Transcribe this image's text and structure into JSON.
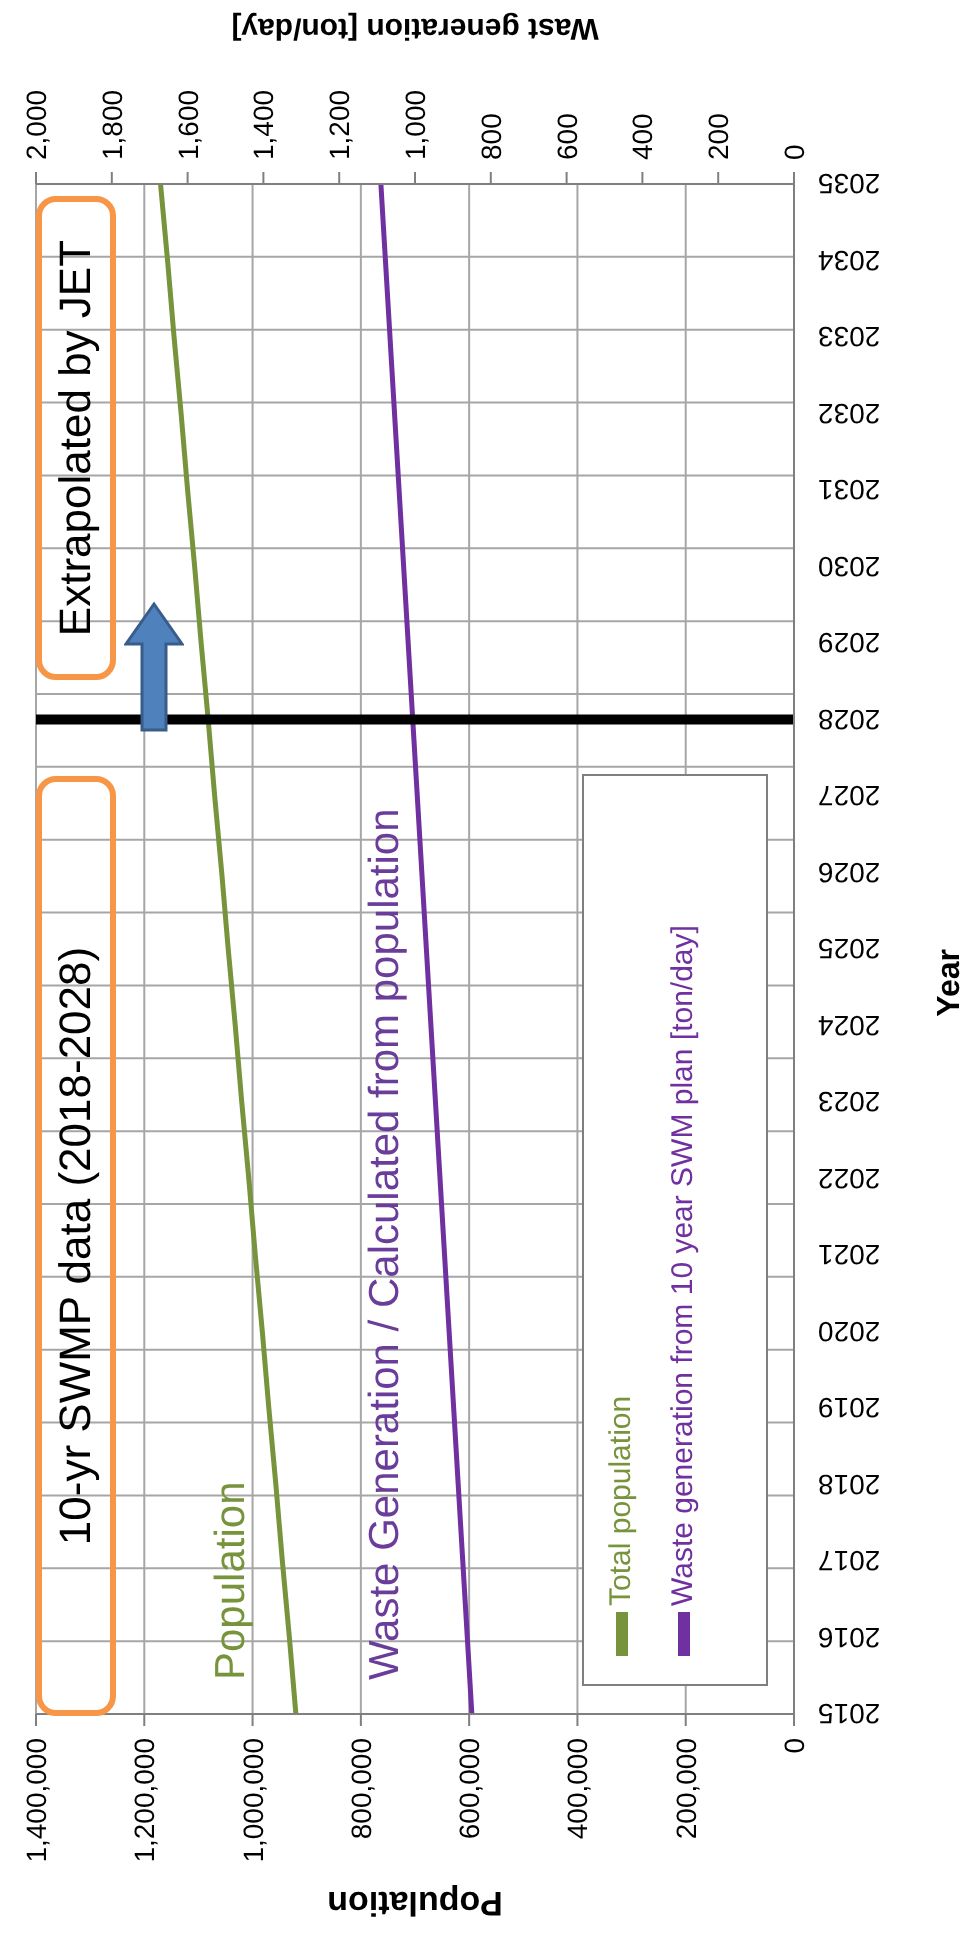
{
  "chart_data": {
    "type": "line",
    "orientation": "horizontal",
    "categories": [
      "2035",
      "2034",
      "2033",
      "2032",
      "2031",
      "2030",
      "2029",
      "2028",
      "2027",
      "2026",
      "2025",
      "2024",
      "2023",
      "2022",
      "2021",
      "2020",
      "2019",
      "2018",
      "2017",
      "2016",
      "2015"
    ],
    "series": [
      {
        "name": "Total population",
        "color": "#77933c",
        "values": [
          1170000,
          1157000,
          1145000,
          1132000,
          1120000,
          1107000,
          1095000,
          1082000,
          1070000,
          1057000,
          1045000,
          1032000,
          1020000,
          1007000,
          995000,
          982000,
          970000,
          957000,
          945000,
          932000,
          920000
        ]
      },
      {
        "name": "Waste generation from 10 year SWM plan [ton/day]",
        "color": "#7030a0",
        "axis": "x2",
        "values": [
          1090,
          1078,
          1066,
          1054,
          1042,
          1030,
          1018,
          1006,
          994,
          982,
          970,
          958,
          946,
          934,
          922,
          910,
          898,
          886,
          874,
          862,
          850
        ]
      }
    ],
    "ylabel": "Year",
    "xlabel": "Population",
    "x2label": "Wast generation [ton/day]",
    "xlim": [
      1400000,
      0
    ],
    "xticks": [
      0,
      {
        "value": 200000,
        "label": "200,000"
      },
      {
        "value": 400000,
        "label": "400,000"
      },
      {
        "value": 600000,
        "label": "600,000"
      },
      {
        "value": 800000,
        "label": "800,000"
      },
      {
        "value": 1000000,
        "label": "1,000,000"
      },
      {
        "value": 1200000,
        "label": "1,200,000"
      },
      {
        "value": 1400000,
        "label": "1,400,000"
      }
    ],
    "x2lim": [
      2000,
      0
    ],
    "x2ticks": [
      0,
      200,
      400,
      600,
      800,
      {
        "value": 1000,
        "label": "1,000"
      },
      {
        "value": 1200,
        "label": "1,200"
      },
      {
        "value": 1400,
        "label": "1,400"
      },
      {
        "value": 1600,
        "label": "1,600"
      },
      {
        "value": 1800,
        "label": "1,800"
      },
      {
        "value": 2000,
        "label": "2,000"
      }
    ],
    "ref_lines": [
      {
        "axis": "y",
        "value": "2028",
        "color": "#000000"
      }
    ],
    "annotations": [
      "10-yr SWMP data (2018-2028)",
      "Extrapolated by JET",
      "Population",
      "Waste Generation / Calculated from population"
    ],
    "grid": true,
    "legend": "bottom right",
    "marker": "none",
    "line_style": "solid"
  }
}
